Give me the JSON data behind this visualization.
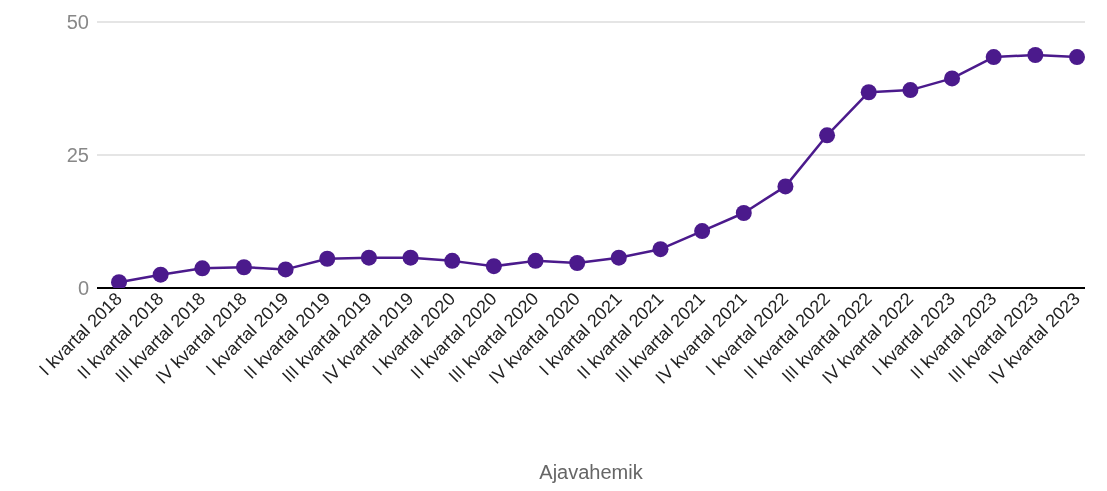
{
  "chart_data": {
    "type": "line",
    "xlabel": "Ajavahemik",
    "categories": [
      "I kvartal 2018",
      "II kvartal 2018",
      "III kvartal 2018",
      "IV kvartal 2018",
      "I kvartal 2019",
      "II kvartal 2019",
      "III kvartal 2019",
      "IV kvartal 2019",
      "I kvartal 2020",
      "II kvartal 2020",
      "III kvartal 2020",
      "IV kvartal 2020",
      "I kvartal 2021",
      "II kvartal 2021",
      "III kvartal 2021",
      "IV kvartal 2021",
      "I kvartal 2022",
      "II kvartal 2022",
      "III kvartal 2022",
      "IV kvartal 2022",
      "I kvartal 2023",
      "II kvartal 2023",
      "III kvartal 2023",
      "IV kvartal 2023"
    ],
    "series": [
      {
        "color": "#4b1a8c",
        "values": [
          1.1,
          2.5,
          3.7,
          3.9,
          3.5,
          5.5,
          5.7,
          5.7,
          5.1,
          4.1,
          5.1,
          4.7,
          5.7,
          7.3,
          10.7,
          14.1,
          19.1,
          28.7,
          36.8,
          37.2,
          39.4,
          43.4,
          43.8,
          43.4
        ]
      }
    ],
    "ylim": [
      0,
      50
    ],
    "yticks": [
      0,
      25,
      50
    ],
    "grid": "y",
    "legend": false,
    "marker": "circle",
    "line_style": "solid"
  }
}
